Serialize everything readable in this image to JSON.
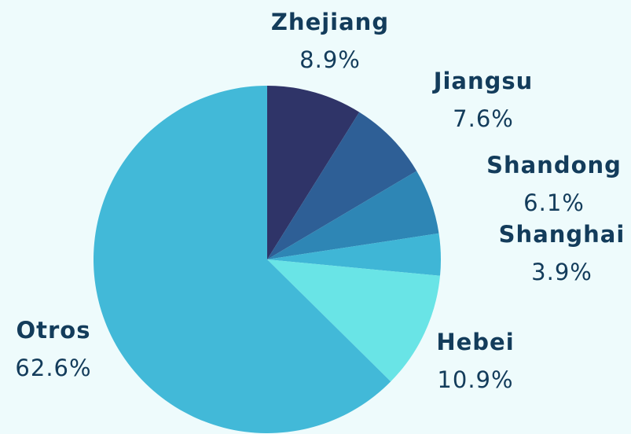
{
  "chart_data": {
    "type": "pie",
    "categories": [
      "Zhejiang",
      "Jiangsu",
      "Shandong",
      "Shanghai",
      "Hebei",
      "Otros"
    ],
    "values": [
      8.9,
      7.6,
      6.1,
      3.9,
      10.9,
      62.6
    ],
    "value_labels": [
      "8.9%",
      "7.6%",
      "6.1%",
      "3.9%",
      "10.9%",
      "62.6%"
    ],
    "colors": [
      "#2f3468",
      "#2e5f96",
      "#2e86b5",
      "#3fb6d6",
      "#69e4e6",
      "#42b9d8"
    ]
  }
}
